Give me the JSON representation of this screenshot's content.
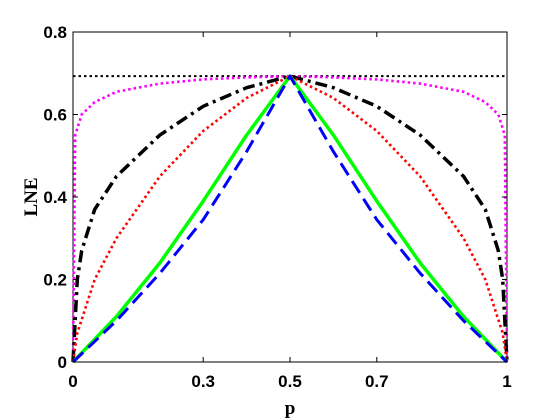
{
  "chart_data": {
    "type": "line",
    "title": "",
    "xlabel": "p",
    "ylabel": "LNE",
    "xlim": [
      0,
      1
    ],
    "ylim": [
      0,
      0.8
    ],
    "x_ticks": [
      0,
      0.3,
      0.5,
      0.7,
      1
    ],
    "x_tick_labels": [
      "0",
      "0.3",
      "0.5",
      "0.7",
      "1"
    ],
    "y_ticks": [
      0,
      0.2,
      0.4,
      0.6,
      0.8
    ],
    "y_tick_labels": [
      "0",
      "0.2",
      "0.4",
      "0.6",
      "0.8"
    ],
    "grid": false,
    "legend": "none",
    "series": [
      {
        "style": "dotted",
        "color": "#000000",
        "x": [
          0,
          0.25,
          0.5,
          0.75,
          1
        ],
        "y": [
          0.693,
          0.693,
          0.693,
          0.693,
          0.693
        ]
      },
      {
        "style": "dotted",
        "color": "#ff00ff",
        "x": [
          0,
          0.005,
          0.02,
          0.05,
          0.1,
          0.2,
          0.3,
          0.4,
          0.5,
          0.6,
          0.7,
          0.8,
          0.9,
          0.95,
          0.98,
          0.995,
          1
        ],
        "y": [
          0,
          0.55,
          0.6,
          0.63,
          0.655,
          0.675,
          0.685,
          0.69,
          0.693,
          0.69,
          0.685,
          0.675,
          0.655,
          0.63,
          0.6,
          0.55,
          0
        ]
      },
      {
        "style": "dashdot",
        "color": "#000000",
        "x": [
          0,
          0.01,
          0.02,
          0.05,
          0.1,
          0.2,
          0.3,
          0.4,
          0.5,
          0.6,
          0.7,
          0.8,
          0.9,
          0.95,
          0.98,
          0.99,
          1
        ],
        "y": [
          0,
          0.2,
          0.27,
          0.37,
          0.45,
          0.55,
          0.62,
          0.665,
          0.693,
          0.665,
          0.62,
          0.55,
          0.45,
          0.37,
          0.27,
          0.2,
          0
        ]
      },
      {
        "style": "dotted",
        "color": "#ff0000",
        "x": [
          0,
          0.01,
          0.05,
          0.1,
          0.2,
          0.3,
          0.4,
          0.5,
          0.6,
          0.7,
          0.8,
          0.9,
          0.95,
          0.99,
          1
        ],
        "y": [
          0,
          0.07,
          0.2,
          0.3,
          0.45,
          0.56,
          0.64,
          0.693,
          0.64,
          0.56,
          0.45,
          0.3,
          0.2,
          0.07,
          0
        ]
      },
      {
        "style": "solid",
        "color": "#00ff00",
        "x": [
          0,
          0.1,
          0.2,
          0.3,
          0.4,
          0.5,
          0.6,
          0.7,
          0.8,
          0.9,
          1
        ],
        "y": [
          0,
          0.11,
          0.24,
          0.39,
          0.55,
          0.693,
          0.55,
          0.39,
          0.24,
          0.11,
          0
        ]
      },
      {
        "style": "dashed",
        "color": "#0000ff",
        "x": [
          0,
          0.1,
          0.2,
          0.3,
          0.4,
          0.5,
          0.6,
          0.7,
          0.8,
          0.9,
          1
        ],
        "y": [
          0,
          0.1,
          0.215,
          0.345,
          0.51,
          0.693,
          0.51,
          0.345,
          0.215,
          0.1,
          0
        ]
      }
    ]
  }
}
